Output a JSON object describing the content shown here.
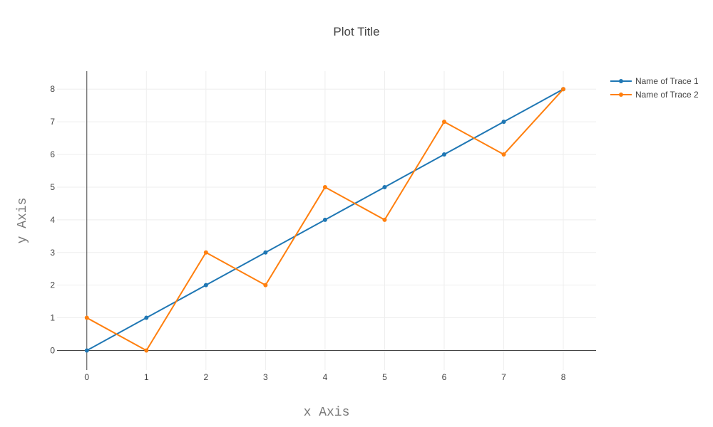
{
  "chart_data": {
    "type": "line",
    "title": "Plot Title",
    "xlabel": "x Axis",
    "ylabel": "y Axis",
    "x": [
      0,
      1,
      2,
      3,
      4,
      5,
      6,
      7,
      8
    ],
    "xlim": [
      -0.5,
      8.55
    ],
    "ylim": [
      -0.6,
      8.55
    ],
    "xticks": [
      0,
      1,
      2,
      3,
      4,
      5,
      6,
      7,
      8
    ],
    "yticks": [
      0,
      1,
      2,
      3,
      4,
      5,
      6,
      7,
      8
    ],
    "grid": true,
    "legend_position": "top-right",
    "series": [
      {
        "name": "Name of Trace 1",
        "color": "#1f77b4",
        "values": [
          0,
          1,
          2,
          3,
          4,
          5,
          6,
          7,
          8
        ]
      },
      {
        "name": "Name of Trace 2",
        "color": "#ff7f0e",
        "values": [
          1,
          0,
          3,
          2,
          5,
          4,
          7,
          6,
          8
        ]
      }
    ]
  }
}
